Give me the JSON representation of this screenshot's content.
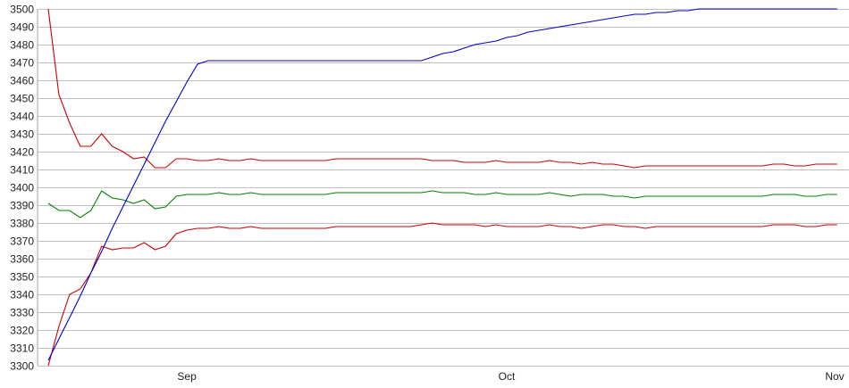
{
  "chart_data": {
    "type": "line",
    "title": "",
    "xlabel": "",
    "ylabel": "",
    "ylim": [
      3300,
      3500
    ],
    "yticks": [
      3300,
      3310,
      3320,
      3330,
      3340,
      3350,
      3360,
      3370,
      3380,
      3390,
      3400,
      3410,
      3420,
      3430,
      3440,
      3450,
      3460,
      3470,
      3480,
      3490,
      3500
    ],
    "xtick_labels": [
      {
        "label": "Sep",
        "date": "Sep 1"
      },
      {
        "label": "Oct",
        "date": "Oct 1"
      },
      {
        "label": "Nov",
        "date": "Nov 1"
      }
    ],
    "grid": true,
    "x": [
      "Aug 19",
      "Aug 20",
      "Aug 21",
      "Aug 22",
      "Aug 23",
      "Aug 24",
      "Aug 25",
      "Aug 26",
      "Aug 27",
      "Aug 28",
      "Aug 29",
      "Aug 30",
      "Aug 31",
      "Sep 1",
      "Sep 2",
      "Sep 3",
      "Sep 4",
      "Sep 5",
      "Sep 6",
      "Sep 7",
      "Sep 8",
      "Sep 9",
      "Sep 10",
      "Sep 11",
      "Sep 12",
      "Sep 13",
      "Sep 14",
      "Sep 15",
      "Sep 16",
      "Sep 17",
      "Sep 18",
      "Sep 19",
      "Sep 20",
      "Sep 21",
      "Sep 22",
      "Sep 23",
      "Sep 24",
      "Sep 25",
      "Sep 26",
      "Sep 27",
      "Sep 28",
      "Sep 29",
      "Sep 30",
      "Oct 1",
      "Oct 2",
      "Oct 3",
      "Oct 4",
      "Oct 5",
      "Oct 6",
      "Oct 7",
      "Oct 8",
      "Oct 9",
      "Oct 10",
      "Oct 11",
      "Oct 12",
      "Oct 13",
      "Oct 14",
      "Oct 15",
      "Oct 16",
      "Oct 17",
      "Oct 18",
      "Oct 19",
      "Oct 20",
      "Oct 21",
      "Oct 22",
      "Oct 23",
      "Oct 24",
      "Oct 25",
      "Oct 26",
      "Oct 27",
      "Oct 28",
      "Oct 29",
      "Oct 30",
      "Oct 31",
      "Nov 1"
    ],
    "series": [
      {
        "color": "#cc0000",
        "values": [
          3500,
          3452,
          3436,
          3423,
          3423,
          3430,
          3423,
          3420,
          3416,
          3417,
          3411,
          3411,
          3416,
          3416,
          3415,
          3415,
          3416,
          3415,
          3415,
          3416,
          3415,
          3415,
          3415,
          3415,
          3415,
          3415,
          3415,
          3416,
          3416,
          3416,
          3416,
          3416,
          3416,
          3416,
          3416,
          3416,
          3415,
          3415,
          3415,
          3414,
          3414,
          3414,
          3415,
          3414,
          3414,
          3414,
          3414,
          3415,
          3414,
          3414,
          3413,
          3414,
          3413,
          3413,
          3412,
          3411,
          3412,
          3412,
          3412,
          3412,
          3412,
          3412,
          3412,
          3412,
          3412,
          3412,
          3412,
          3412,
          3413,
          3413,
          3412,
          3412,
          3413,
          3413,
          3413
        ]
      },
      {
        "color": "#008000",
        "values": [
          3391,
          3387,
          3387,
          3383,
          3387,
          3398,
          3394,
          3393,
          3391,
          3393,
          3388,
          3389,
          3395,
          3396,
          3396,
          3396,
          3397,
          3396,
          3396,
          3397,
          3396,
          3396,
          3396,
          3396,
          3396,
          3396,
          3396,
          3397,
          3397,
          3397,
          3397,
          3397,
          3397,
          3397,
          3397,
          3397,
          3398,
          3397,
          3397,
          3397,
          3396,
          3396,
          3397,
          3396,
          3396,
          3396,
          3396,
          3397,
          3396,
          3395,
          3396,
          3396,
          3396,
          3395,
          3395,
          3394,
          3395,
          3395,
          3395,
          3395,
          3395,
          3395,
          3395,
          3395,
          3395,
          3395,
          3395,
          3395,
          3396,
          3396,
          3396,
          3395,
          3395,
          3396,
          3396
        ]
      },
      {
        "color": "#cc0000",
        "values": [
          3300,
          3322,
          3340,
          3343,
          3352,
          3367,
          3365,
          3366,
          3366,
          3369,
          3365,
          3367,
          3374,
          3376,
          3377,
          3377,
          3378,
          3377,
          3377,
          3378,
          3377,
          3377,
          3377,
          3377,
          3377,
          3377,
          3377,
          3378,
          3378,
          3378,
          3378,
          3378,
          3378,
          3378,
          3378,
          3379,
          3380,
          3379,
          3379,
          3379,
          3379,
          3378,
          3379,
          3378,
          3378,
          3378,
          3378,
          3379,
          3378,
          3378,
          3377,
          3378,
          3379,
          3379,
          3378,
          3378,
          3377,
          3378,
          3378,
          3378,
          3378,
          3378,
          3378,
          3378,
          3378,
          3378,
          3378,
          3378,
          3379,
          3379,
          3379,
          3378,
          3378,
          3379,
          3379
        ]
      },
      {
        "color": "#0000cc",
        "values": [
          3303,
          3315,
          3327,
          3339,
          3352,
          3364,
          3377,
          3389,
          3401,
          3413,
          3425,
          3437,
          3448,
          3459,
          3469,
          3471,
          3471,
          3471,
          3471,
          3471,
          3471,
          3471,
          3471,
          3471,
          3471,
          3471,
          3471,
          3471,
          3471,
          3471,
          3471,
          3471,
          3471,
          3471,
          3471,
          3471,
          3473,
          3475,
          3476,
          3478,
          3480,
          3481,
          3482,
          3484,
          3485,
          3487,
          3488,
          3489,
          3490,
          3491,
          3492,
          3493,
          3494,
          3495,
          3496,
          3497,
          3497,
          3498,
          3498,
          3499,
          3499,
          3500,
          3500,
          3500,
          3500,
          3500,
          3500,
          3500,
          3500,
          3500,
          3500,
          3500,
          3500,
          3500,
          3500
        ]
      }
    ]
  }
}
